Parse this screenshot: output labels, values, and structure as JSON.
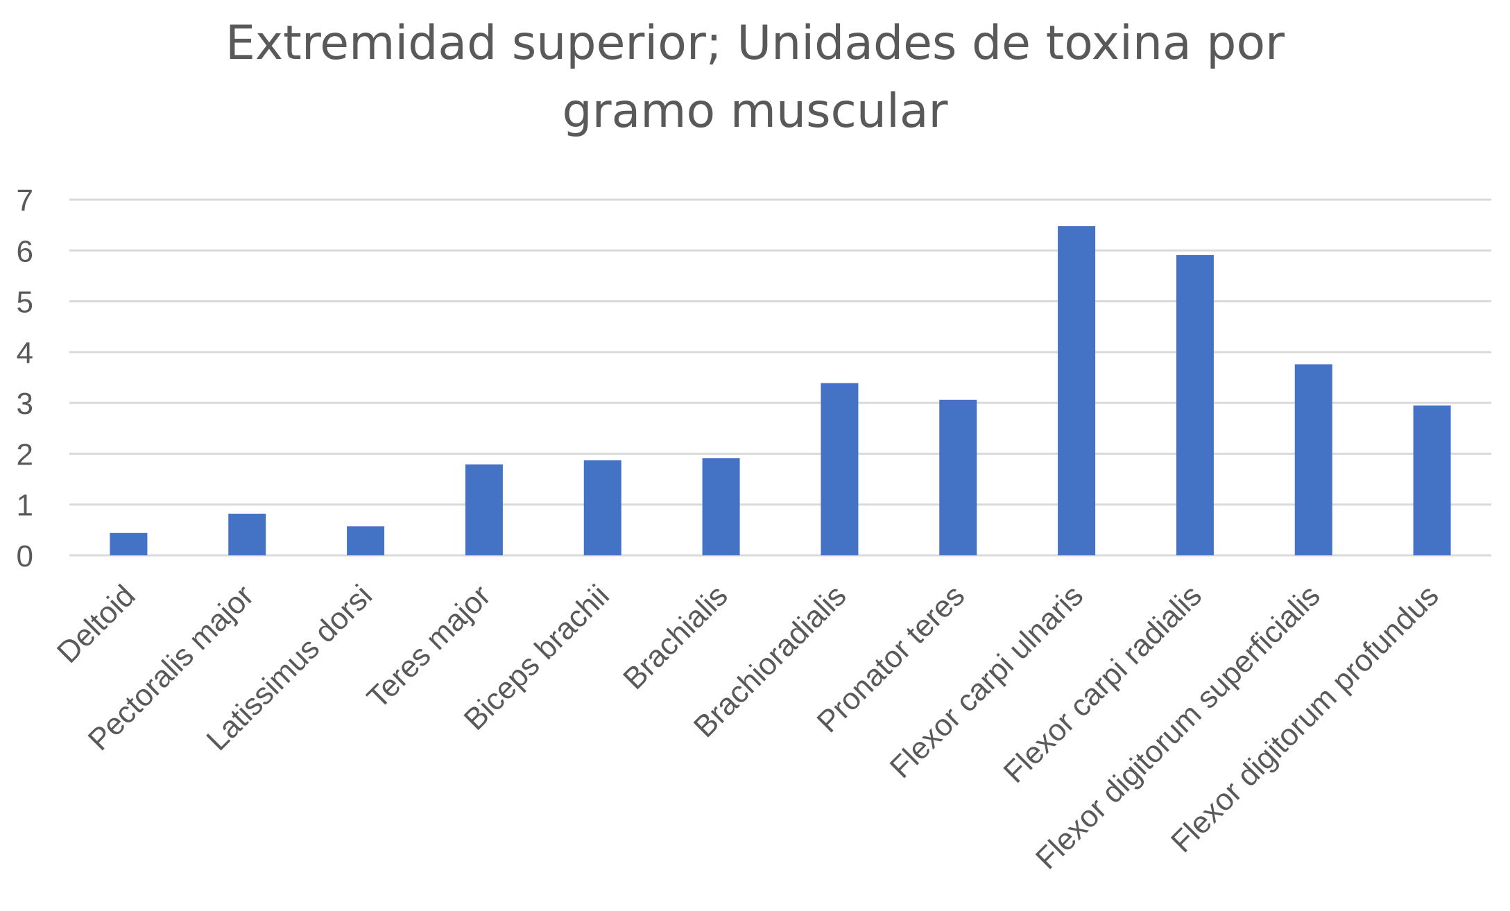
{
  "chart_data": {
    "type": "bar",
    "title_lines": [
      "Extremidad superior; Unidades de toxina por",
      "gramo muscular"
    ],
    "xlabel": "",
    "ylabel": "",
    "ylim": [
      0,
      7
    ],
    "yticks": [
      "0",
      "1",
      "2",
      "3",
      "4",
      "5",
      "6",
      "7"
    ],
    "grid": true,
    "legend": "none",
    "categories": [
      "Deltoid",
      "Pectoralis major",
      "Latissimus dorsi",
      "Teres major",
      "Biceps brachii",
      "Brachialis",
      "Brachioradialis",
      "Pronator teres",
      "Flexor carpi ulnaris",
      "Flexor carpi radialis",
      "Flexor digitorum superficialis",
      "Flexor digitorum profundus"
    ],
    "values": [
      0.44,
      0.82,
      0.57,
      1.79,
      1.87,
      1.91,
      3.39,
      3.06,
      6.48,
      5.91,
      3.76,
      2.95
    ],
    "colors": {
      "bar": "#4472c4",
      "grid": "#d9d9d9",
      "text": "#595959"
    }
  }
}
